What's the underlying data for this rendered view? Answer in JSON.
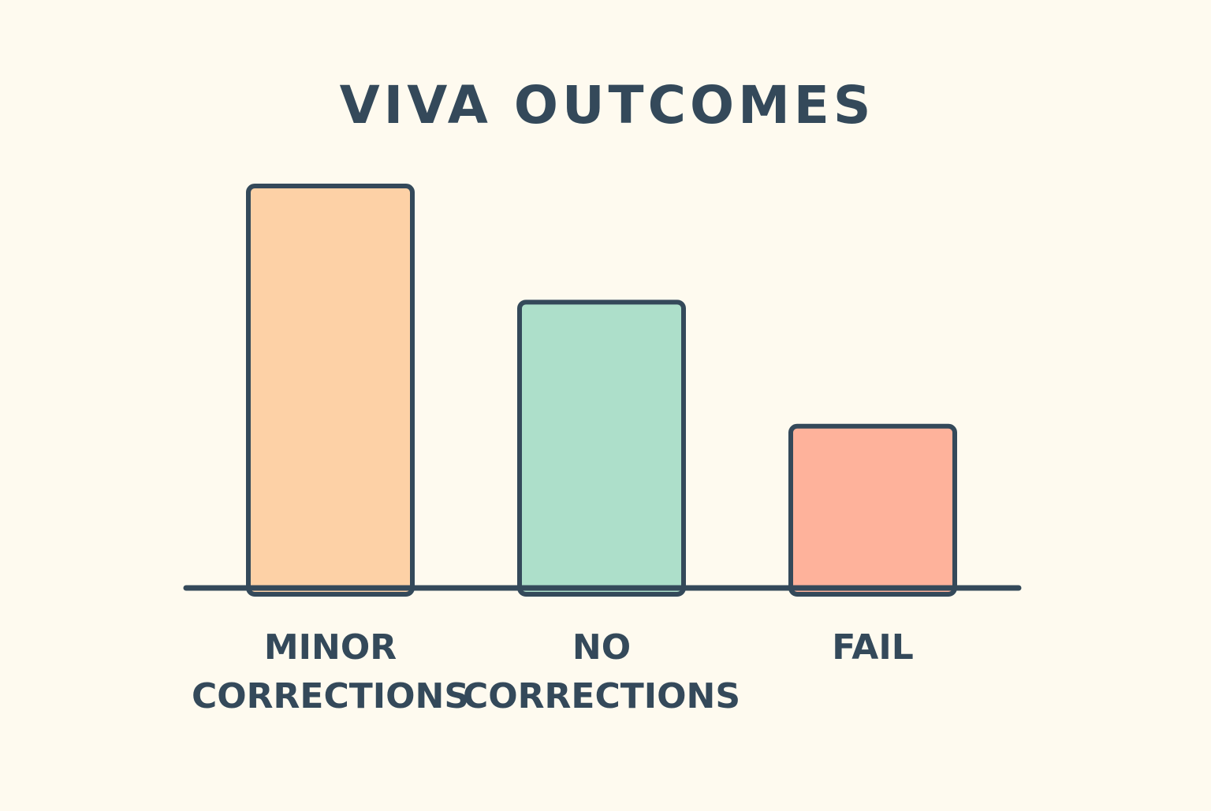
{
  "chart_data": {
    "type": "bar",
    "title": "VIVA OUTCOMES",
    "categories": [
      [
        "MINOR",
        "CORRECTIONS"
      ],
      [
        "NO",
        "CORRECTIONS"
      ],
      [
        "FAIL"
      ]
    ],
    "values": [
      100,
      71,
      40
    ],
    "ylim": [
      0,
      100
    ],
    "grid": false,
    "colors": {
      "background": "#fefaef",
      "ink": "#34495a",
      "bars": [
        "#fdd1a6",
        "#addfca",
        "#feb29b"
      ]
    }
  }
}
